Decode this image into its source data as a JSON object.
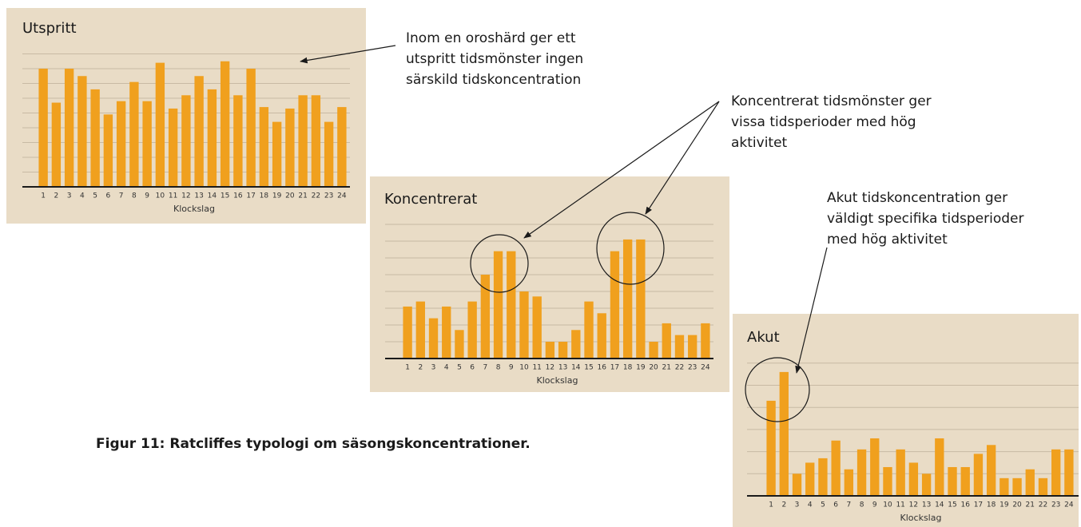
{
  "chart_data": [
    {
      "type": "bar",
      "title": "Utspritt",
      "xlabel": "Klockslag",
      "categories": [
        "1",
        "2",
        "3",
        "4",
        "5",
        "6",
        "7",
        "8",
        "9",
        "10",
        "11",
        "12",
        "13",
        "14",
        "15",
        "16",
        "17",
        "18",
        "19",
        "20",
        "21",
        "22",
        "23",
        "24"
      ],
      "values": [
        8,
        5.7,
        8,
        7.5,
        6.6,
        4.9,
        5.8,
        7.1,
        5.8,
        8.4,
        5.3,
        6.2,
        7.5,
        6.6,
        8.5,
        6.2,
        8,
        5.4,
        4.4,
        5.3,
        6.2,
        6.2,
        4.4,
        5.4
      ],
      "color": "#f0a01e",
      "ylim": [
        0,
        10
      ],
      "yticks": [
        1,
        2,
        3,
        4,
        5,
        6,
        7,
        8,
        9
      ],
      "grid": true
    },
    {
      "type": "bar",
      "title": "Koncentrerat",
      "xlabel": "Klockslag",
      "categories": [
        "1",
        "2",
        "3",
        "4",
        "5",
        "6",
        "7",
        "8",
        "9",
        "10",
        "11",
        "12",
        "13",
        "14",
        "15",
        "16",
        "17",
        "18",
        "19",
        "20",
        "21",
        "22",
        "23",
        "24"
      ],
      "values": [
        3.1,
        3.4,
        2.4,
        3.1,
        1.7,
        3.4,
        5,
        6.4,
        6.4,
        4,
        3.7,
        1,
        1,
        1.7,
        3.4,
        2.7,
        6.4,
        7.1,
        7.1,
        1,
        2.1,
        1.4,
        1.4,
        2.1
      ],
      "color": "#f0a01e",
      "ylim": [
        0,
        9
      ],
      "yticks": [
        1,
        2,
        3,
        4,
        5,
        6,
        7,
        8
      ],
      "grid": true
    },
    {
      "type": "bar",
      "title": "Akut",
      "xlabel": "Klockslag",
      "categories": [
        "1",
        "2",
        "3",
        "4",
        "5",
        "6",
        "7",
        "8",
        "9",
        "10",
        "11",
        "12",
        "13",
        "14",
        "15",
        "16",
        "17",
        "18",
        "19",
        "20",
        "21",
        "22",
        "23",
        "24"
      ],
      "values": [
        4.3,
        5.6,
        1,
        1.5,
        1.7,
        2.5,
        1.2,
        2.1,
        2.6,
        1.3,
        2.1,
        1.5,
        1,
        2.6,
        1.3,
        1.3,
        1.9,
        2.3,
        0.8,
        0.8,
        1.2,
        0.8,
        2.1,
        2.1
      ],
      "color": "#f0a01e",
      "ylim": [
        0,
        7
      ],
      "yticks": [
        1,
        2,
        3,
        4,
        5,
        6
      ],
      "grid": true
    }
  ],
  "annotations": [
    [
      "Inom en oroshärd ger ett",
      "utspritt tidsmönster ingen",
      "särskild tidskoncentration"
    ],
    [
      "Koncentrerat tidsmönster ger",
      "vissa tidsperioder med hög",
      "aktivitet"
    ],
    [
      "Akut tidskoncentration ger",
      "väldigt specifika tidsperioder",
      "med hög aktivitet"
    ]
  ],
  "caption": "Figur 11: Ratcliffes typologi om säsongskoncentrationer."
}
